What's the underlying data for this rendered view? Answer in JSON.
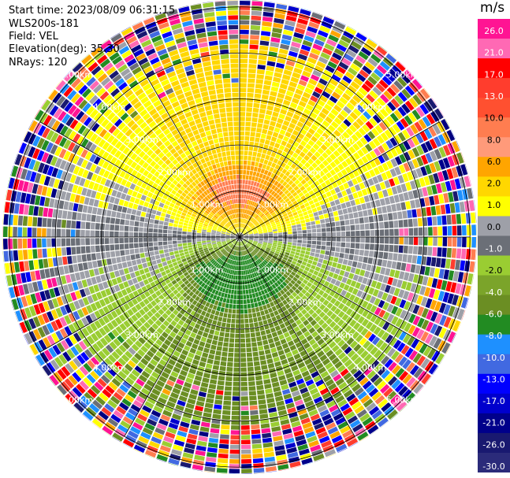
{
  "info": {
    "start_time": "Start time: 2023/08/09 06:31:15",
    "device": "WLS200s-181",
    "field": "Field: VEL",
    "elevation": "Elevation(deg): 35.30",
    "nrays": "NRays: 120"
  },
  "chart_data": {
    "type": "heatmap",
    "subtype": "radar-ppi",
    "rings_km": [
      1,
      2,
      3,
      4,
      5
    ],
    "ring_labels": [
      "1.00km",
      "2.00km",
      "3.00km",
      "4.00km",
      "5.00km"
    ],
    "max_range_km": 5.15,
    "spokes_deg": [
      0,
      30,
      60,
      90,
      120,
      150,
      180,
      210,
      240,
      270,
      300,
      330
    ],
    "n_rays": 120,
    "colorbar": {
      "unit": "m/s",
      "ticks": [
        "26.0",
        "21.0",
        "17.0",
        "13.0",
        "10.0",
        "8.0",
        "6.0",
        "2.0",
        "1.0",
        "0.0",
        "-1.0",
        "-2.0",
        "-4.0",
        "-6.0",
        "-8.0",
        "-10.0",
        "-13.0",
        "-17.0",
        "-21.0",
        "-26.0",
        "-30.0"
      ],
      "colors": [
        "#ff1493",
        "#ff69b4",
        "#ff0000",
        "#ff3d2d",
        "#ff5030",
        "#ff7d50",
        "#ff9a7a",
        "#ffa500",
        "#ffd700",
        "#ffff00",
        "#9ea0a8",
        "#6b6f77",
        "#9acd32",
        "#7ba42a",
        "#6b8e23",
        "#228b22",
        "#1e90ff",
        "#4169e1",
        "#0000ff",
        "#0000cd",
        "#00008b",
        "#191970",
        "#2b2b7a"
      ]
    },
    "pattern": {
      "positive_velocity": "north (yellow/orange, peak ~2-6 m/s near 1 km)",
      "negative_velocity": "south (green, ~ -2 to -6 m/s)",
      "zero_band": "east-west (gray)",
      "noise_beyond_km": 4.0
    }
  }
}
